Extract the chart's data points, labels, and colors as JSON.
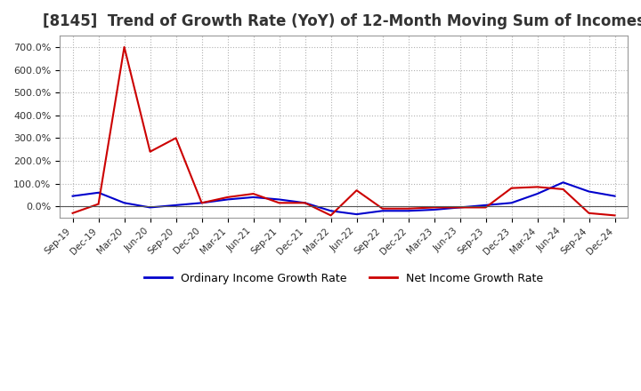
{
  "title": "[8145]  Trend of Growth Rate (YoY) of 12-Month Moving Sum of Incomes",
  "title_fontsize": 12,
  "legend_labels": [
    "Ordinary Income Growth Rate",
    "Net Income Growth Rate"
  ],
  "legend_colors": [
    "#0000cc",
    "#cc0000"
  ],
  "ylim": [
    -50,
    750
  ],
  "yticks": [
    0,
    100,
    200,
    300,
    400,
    500,
    600,
    700
  ],
  "ytick_labels": [
    "0.0%",
    "100.0%",
    "200.0%",
    "300.0%",
    "400.0%",
    "500.0%",
    "600.0%",
    "700.0%"
  ],
  "background_color": "#ffffff",
  "grid_color": "#aaaaaa",
  "dates": [
    "Sep-19",
    "Dec-19",
    "Mar-20",
    "Jun-20",
    "Sep-20",
    "Dec-20",
    "Mar-21",
    "Jun-21",
    "Sep-21",
    "Dec-21",
    "Mar-22",
    "Jun-22",
    "Sep-22",
    "Dec-22",
    "Mar-23",
    "Jun-23",
    "Sep-23",
    "Dec-23",
    "Mar-24",
    "Jun-24",
    "Sep-24",
    "Dec-24"
  ],
  "ordinary_income_gr": [
    45,
    60,
    15,
    -5,
    5,
    15,
    30,
    40,
    30,
    15,
    -20,
    -35,
    -20,
    -20,
    -15,
    -5,
    5,
    15,
    55,
    105,
    65,
    45
  ],
  "net_income_gr": [
    -30,
    10,
    700,
    240,
    300,
    15,
    40,
    55,
    15,
    15,
    -40,
    70,
    -10,
    -10,
    -5,
    -5,
    -5,
    80,
    85,
    75,
    -30,
    -40
  ]
}
